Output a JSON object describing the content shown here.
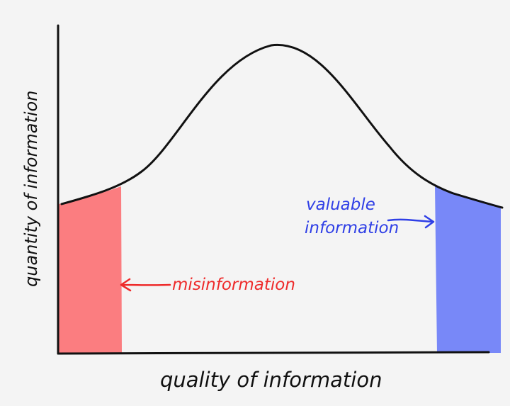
{
  "diagram": {
    "x_axis_label": "quality of information",
    "y_axis_label": "quantity of information",
    "annotations": {
      "left": {
        "text": "misinformation",
        "color": "#ee2b2b"
      },
      "right": {
        "lines": [
          "valuable",
          "information"
        ],
        "color": "#2f3fe6"
      }
    },
    "regions": {
      "left_fill": "#fb7d80",
      "right_fill": "#7888f8"
    },
    "curve": {
      "shape": "bell",
      "stroke": "#111111"
    }
  }
}
